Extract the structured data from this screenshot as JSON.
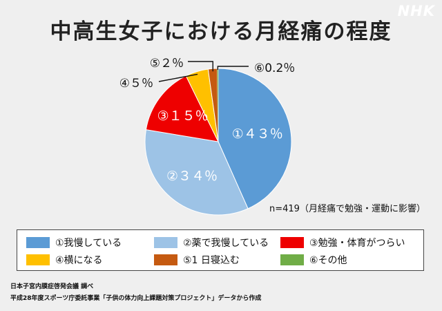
{
  "brand": "NHK",
  "chart_data": {
    "type": "pie",
    "title": "中高生女子における月経痛の程度",
    "note": "n=419（月経痛で勉強・運動に影響）",
    "slices": [
      {
        "label": "①我慢している",
        "tag": "①４３％",
        "value": 43,
        "color": "#5b9bd5"
      },
      {
        "label": "②薬で我慢している",
        "tag": "②３４％",
        "value": 34,
        "color": "#9dc3e6"
      },
      {
        "label": "③勉強・体育がつらい",
        "tag": "③１５％",
        "value": 15,
        "color": "#ee0000"
      },
      {
        "label": "④横になる",
        "tag": "④５％",
        "value": 5,
        "color": "#ffc000"
      },
      {
        "label": "⑤1 日寝込む",
        "tag": "⑤２％",
        "value": 2,
        "color": "#c55a11"
      },
      {
        "label": "⑥その他",
        "tag": "⑥0.2％",
        "value": 0.2,
        "color": "#70ad47"
      }
    ]
  },
  "source": {
    "line1": "日本子宮内膜症啓発会議 調べ",
    "line2": "平成28年度スポーツ庁委託事業「子供の体力向上課題対策プロジェクト」データから作成"
  }
}
